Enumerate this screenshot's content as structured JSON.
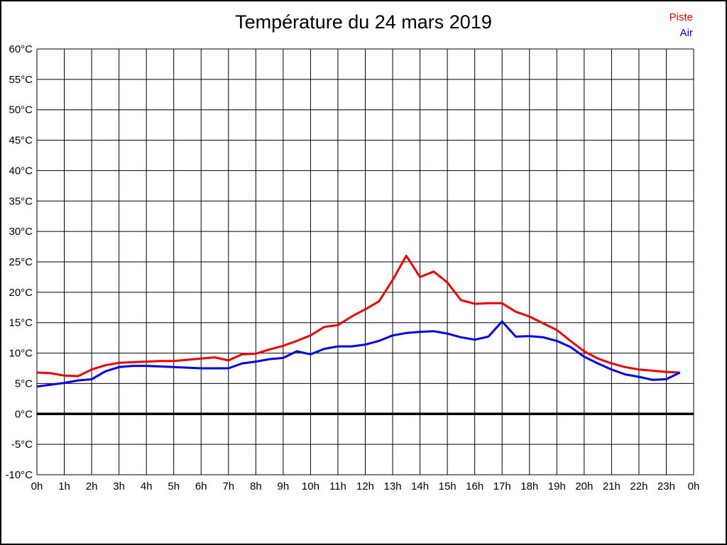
{
  "title": "Température du 24 mars 2019",
  "legend": {
    "items": [
      {
        "label": "Piste",
        "color": "#ee0000"
      },
      {
        "label": "Air",
        "color": "#0000ee"
      }
    ]
  },
  "chart_data": {
    "type": "line",
    "title": "Température du 24 mars 2019",
    "xlabel": "",
    "ylabel": "",
    "xlim": [
      0,
      24
    ],
    "ylim": [
      -10,
      60
    ],
    "y_step": 5,
    "grid": true,
    "grid_color": "#000000",
    "zero_line": true,
    "legend_position": "top-right",
    "x_tick_labels": [
      "0h",
      "1h",
      "2h",
      "3h",
      "4h",
      "5h",
      "6h",
      "7h",
      "8h",
      "9h",
      "10h",
      "11h",
      "12h",
      "13h",
      "14h",
      "15h",
      "16h",
      "17h",
      "18h",
      "19h",
      "20h",
      "21h",
      "22h",
      "23h",
      "0h"
    ],
    "y_tick_labels": [
      "60°C",
      "55°C",
      "50°C",
      "45°C",
      "40°C",
      "35°C",
      "30°C",
      "25°C",
      "20°C",
      "15°C",
      "10°C",
      "5°C",
      "0°C",
      "-5°C",
      "-10°C"
    ],
    "y_tick_values": [
      60,
      55,
      50,
      45,
      40,
      35,
      30,
      25,
      20,
      15,
      10,
      5,
      0,
      -5,
      -10
    ],
    "x": [
      0,
      0.5,
      1,
      1.5,
      2,
      2.5,
      3,
      3.5,
      4,
      4.5,
      5,
      5.5,
      6,
      6.5,
      7,
      7.5,
      8,
      8.5,
      9,
      9.5,
      10,
      10.5,
      11,
      11.5,
      12,
      12.5,
      13,
      13.5,
      14,
      14.5,
      15,
      15.5,
      16,
      16.5,
      17,
      17.5,
      18,
      18.5,
      19,
      19.5,
      20,
      20.5,
      21,
      21.5,
      22,
      22.5,
      23,
      23.5
    ],
    "series": [
      {
        "name": "Piste",
        "color": "#ee0000",
        "values": [
          6.8,
          6.7,
          6.3,
          6.2,
          7.3,
          8.0,
          8.4,
          8.5,
          8.6,
          8.7,
          8.7,
          8.9,
          9.1,
          9.3,
          8.8,
          9.8,
          9.9,
          10.6,
          11.2,
          12.0,
          12.9,
          14.3,
          14.6,
          16.0,
          17.2,
          18.5,
          22.0,
          26.0,
          22.5,
          23.4,
          21.6,
          18.7,
          18.1,
          18.2,
          18.2,
          16.8,
          16.0,
          14.9,
          13.8,
          12.0,
          10.3,
          9.1,
          8.3,
          7.7,
          7.3,
          7.1,
          6.9,
          6.8
        ]
      },
      {
        "name": "Air",
        "color": "#0000ee",
        "values": [
          4.5,
          4.8,
          5.1,
          5.5,
          5.7,
          7.0,
          7.7,
          7.9,
          7.9,
          7.8,
          7.7,
          7.6,
          7.5,
          7.5,
          7.5,
          8.3,
          8.6,
          9.0,
          9.2,
          10.3,
          9.8,
          10.7,
          11.1,
          11.1,
          11.4,
          12.0,
          12.9,
          13.3,
          13.5,
          13.6,
          13.2,
          12.6,
          12.2,
          12.7,
          15.2,
          12.7,
          12.8,
          12.6,
          12.0,
          11.0,
          9.4,
          8.3,
          7.3,
          6.5,
          6.1,
          5.6,
          5.7,
          6.8
        ]
      }
    ]
  }
}
